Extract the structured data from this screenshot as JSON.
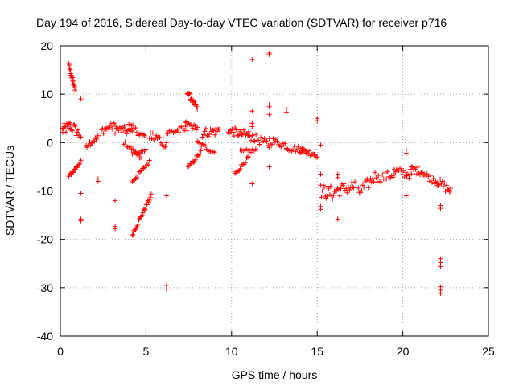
{
  "chart_data": {
    "type": "scatter",
    "title": "Day 194 of 2016, Sidereal Day-to-day VTEC variation (SDTVAR) for receiver p716",
    "xlabel": "GPS time / hours",
    "ylabel": "SDTVAR / TECUs",
    "xlim": [
      0,
      25
    ],
    "ylim": [
      -40,
      20
    ],
    "x_ticks": [
      "0",
      "5",
      "10",
      "15",
      "20",
      "25"
    ],
    "y_ticks": [
      "20",
      "10",
      "0",
      "-10",
      "-20",
      "-30",
      "-40"
    ],
    "grid": true,
    "marker": "+",
    "color": "#ff0000",
    "segments": [
      {
        "x0": 0.1,
        "x1": 0.6,
        "y0": 2.5,
        "y1": 3.5,
        "n": 14,
        "noise": 1.2
      },
      {
        "x0": 0.6,
        "x1": 1.2,
        "y0": 3.5,
        "y1": 1.5,
        "n": 12,
        "noise": 1.2
      },
      {
        "x0": 0.5,
        "x1": 0.85,
        "y0": 16.0,
        "y1": 11.0,
        "n": 18,
        "noise": 0.4
      },
      {
        "x0": 0.5,
        "x1": 1.2,
        "y0": -7.0,
        "y1": -4.0,
        "n": 14,
        "noise": 0.4
      },
      {
        "x0": 1.5,
        "x1": 2.2,
        "y0": -0.5,
        "y1": 1.0,
        "n": 14,
        "noise": 0.6
      },
      {
        "x0": 2.4,
        "x1": 3.2,
        "y0": 2.5,
        "y1": 3.5,
        "n": 14,
        "noise": 0.8
      },
      {
        "x0": 3.2,
        "x1": 4.2,
        "y0": 2.8,
        "y1": 2.2,
        "n": 16,
        "noise": 0.9
      },
      {
        "x0": 3.7,
        "x1": 4.7,
        "y0": 0.0,
        "y1": -3.0,
        "n": 14,
        "noise": 0.4
      },
      {
        "x0": 4.0,
        "x1": 5.0,
        "y0": 3.5,
        "y1": 1.0,
        "n": 14,
        "noise": 0.7
      },
      {
        "x0": 4.2,
        "x1": 5.0,
        "y0": -2.5,
        "y1": -1.5,
        "n": 10,
        "noise": 0.4
      },
      {
        "x0": 4.2,
        "x1": 5.2,
        "y0": -8.0,
        "y1": -4.0,
        "n": 16,
        "noise": 0.4
      },
      {
        "x0": 4.2,
        "x1": 5.3,
        "y0": -19.0,
        "y1": -11.0,
        "n": 24,
        "noise": 0.4
      },
      {
        "x0": 5.2,
        "x1": 6.2,
        "y0": 1.5,
        "y1": 0.0,
        "n": 16,
        "noise": 1.2
      },
      {
        "x0": 6.2,
        "x1": 7.4,
        "y0": 2.0,
        "y1": 2.8,
        "n": 16,
        "noise": 0.8
      },
      {
        "x0": 7.4,
        "x1": 8.0,
        "y0": 10.5,
        "y1": 7.0,
        "n": 16,
        "noise": 0.5
      },
      {
        "x0": 7.3,
        "x1": 8.0,
        "y0": 4.0,
        "y1": 3.0,
        "n": 12,
        "noise": 0.5
      },
      {
        "x0": 7.4,
        "x1": 8.2,
        "y0": -5.5,
        "y1": -2.0,
        "n": 14,
        "noise": 0.4
      },
      {
        "x0": 8.0,
        "x1": 9.0,
        "y0": 0.0,
        "y1": -2.0,
        "n": 14,
        "noise": 0.5
      },
      {
        "x0": 8.3,
        "x1": 9.3,
        "y0": 2.0,
        "y1": 2.5,
        "n": 16,
        "noise": 1.0
      },
      {
        "x0": 9.8,
        "x1": 11.0,
        "y0": 2.5,
        "y1": 1.5,
        "n": 22,
        "noise": 0.9
      },
      {
        "x0": 10.2,
        "x1": 11.0,
        "y0": -6.5,
        "y1": -3.0,
        "n": 14,
        "noise": 0.4
      },
      {
        "x0": 10.5,
        "x1": 11.5,
        "y0": -2.0,
        "y1": -1.5,
        "n": 12,
        "noise": 0.5
      },
      {
        "x0": 11.0,
        "x1": 12.2,
        "y0": 1.5,
        "y1": -0.5,
        "n": 18,
        "noise": 0.9
      },
      {
        "x0": 12.2,
        "x1": 13.2,
        "y0": 0.5,
        "y1": -0.5,
        "n": 14,
        "noise": 0.8
      },
      {
        "x0": 13.2,
        "x1": 14.2,
        "y0": -1.0,
        "y1": -1.5,
        "n": 14,
        "noise": 0.7
      },
      {
        "x0": 14.0,
        "x1": 15.0,
        "y0": -1.5,
        "y1": -2.5,
        "n": 18,
        "noise": 0.6
      },
      {
        "x0": 15.2,
        "x1": 16.0,
        "y0": -10.0,
        "y1": -10.5,
        "n": 16,
        "noise": 1.5
      },
      {
        "x0": 16.0,
        "x1": 17.2,
        "y0": -10.0,
        "y1": -9.0,
        "n": 20,
        "noise": 1.4
      },
      {
        "x0": 17.4,
        "x1": 18.5,
        "y0": -10.5,
        "y1": -6.5,
        "n": 18,
        "noise": 1.2
      },
      {
        "x0": 18.5,
        "x1": 19.5,
        "y0": -7.5,
        "y1": -6.5,
        "n": 14,
        "noise": 1.0
      },
      {
        "x0": 19.5,
        "x1": 20.5,
        "y0": -6.0,
        "y1": -6.5,
        "n": 16,
        "noise": 1.0
      },
      {
        "x0": 20.5,
        "x1": 21.2,
        "y0": -5.5,
        "y1": -6.0,
        "n": 12,
        "noise": 0.8
      },
      {
        "x0": 21.2,
        "x1": 22.0,
        "y0": -6.5,
        "y1": -8.0,
        "n": 12,
        "noise": 0.8
      },
      {
        "x0": 22.0,
        "x1": 22.8,
        "y0": -8.0,
        "y1": -10.0,
        "n": 14,
        "noise": 1.0
      }
    ],
    "points": [
      [
        1.2,
        9.0
      ],
      [
        1.2,
        -10.5
      ],
      [
        1.2,
        -15.8
      ],
      [
        1.2,
        -16.2
      ],
      [
        2.2,
        -7.5
      ],
      [
        2.2,
        -8.0
      ],
      [
        3.2,
        -12.0
      ],
      [
        3.2,
        -17.3
      ],
      [
        3.2,
        -17.8
      ],
      [
        6.2,
        -11.0
      ],
      [
        6.2,
        -29.5
      ],
      [
        6.2,
        -30.3
      ],
      [
        11.2,
        17.2
      ],
      [
        11.2,
        6.5
      ],
      [
        11.2,
        4.0
      ],
      [
        11.2,
        3.3
      ],
      [
        11.2,
        -8.5
      ],
      [
        12.2,
        18.5
      ],
      [
        12.2,
        18.2
      ],
      [
        12.2,
        7.8
      ],
      [
        12.2,
        7.4
      ],
      [
        12.2,
        5.8
      ],
      [
        12.2,
        -5.0
      ],
      [
        13.2,
        7.0
      ],
      [
        13.2,
        6.3
      ],
      [
        15.0,
        5.0
      ],
      [
        15.0,
        4.5
      ],
      [
        15.2,
        -0.5
      ],
      [
        15.2,
        -6.5
      ],
      [
        15.2,
        -13.2
      ],
      [
        15.2,
        -13.8
      ],
      [
        16.2,
        -6.5
      ],
      [
        16.2,
        -7.2
      ],
      [
        16.2,
        -15.8
      ],
      [
        20.2,
        -1.5
      ],
      [
        20.2,
        -2.2
      ],
      [
        20.2,
        -11.0
      ],
      [
        22.2,
        -24.0
      ],
      [
        22.2,
        -24.8
      ],
      [
        22.2,
        -25.6
      ],
      [
        22.2,
        -29.8
      ],
      [
        22.2,
        -30.5
      ],
      [
        22.2,
        -31.2
      ],
      [
        22.2,
        -13.0
      ],
      [
        22.2,
        -13.6
      ]
    ]
  }
}
